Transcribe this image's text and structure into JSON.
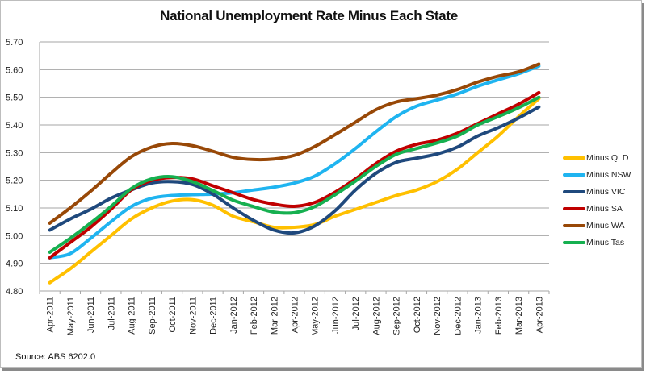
{
  "chart_data": {
    "type": "line",
    "title": "National Unemployment Rate Minus Each State",
    "xlabel": "",
    "ylabel": "",
    "ylim": [
      4.8,
      5.7
    ],
    "yticks": [
      "4.80",
      "4.90",
      "5.00",
      "5.10",
      "5.20",
      "5.30",
      "5.40",
      "5.50",
      "5.60",
      "5.70"
    ],
    "grid": true,
    "legend_position": "right",
    "categories": [
      "Apr-2011",
      "May-2011",
      "Jun-2011",
      "Jul-2011",
      "Aug-2011",
      "Sep-2011",
      "Oct-2011",
      "Nov-2011",
      "Dec-2011",
      "Jan-2012",
      "Feb-2012",
      "Mar-2012",
      "Apr-2012",
      "May-2012",
      "Jun-2012",
      "Jul-2012",
      "Aug-2012",
      "Sep-2012",
      "Oct-2012",
      "Nov-2012",
      "Dec-2012",
      "Jan-2013",
      "Feb-2013",
      "Mar-2013",
      "Apr-2013"
    ],
    "series": [
      {
        "name": "Minus QLD",
        "color": "#FFC000",
        "values": [
          4.83,
          4.88,
          4.94,
          5.0,
          5.06,
          5.1,
          5.125,
          5.13,
          5.11,
          5.07,
          5.05,
          5.03,
          5.03,
          5.04,
          5.07,
          5.095,
          5.12,
          5.145,
          5.165,
          5.195,
          5.24,
          5.3,
          5.36,
          5.43,
          5.495
        ]
      },
      {
        "name": "Minus NSW",
        "color": "#1FB4F0",
        "values": [
          4.92,
          4.935,
          4.99,
          5.05,
          5.105,
          5.135,
          5.145,
          5.148,
          5.15,
          5.155,
          5.165,
          5.175,
          5.19,
          5.215,
          5.26,
          5.315,
          5.375,
          5.43,
          5.468,
          5.49,
          5.512,
          5.54,
          5.563,
          5.585,
          5.613
        ]
      },
      {
        "name": "Minus VIC",
        "color": "#1F497D",
        "values": [
          5.02,
          5.06,
          5.095,
          5.135,
          5.165,
          5.19,
          5.195,
          5.185,
          5.15,
          5.1,
          5.055,
          5.02,
          5.01,
          5.035,
          5.09,
          5.165,
          5.225,
          5.265,
          5.28,
          5.295,
          5.32,
          5.36,
          5.39,
          5.425,
          5.465
        ]
      },
      {
        "name": "Minus SA",
        "color": "#C00000",
        "values": [
          4.92,
          4.975,
          5.03,
          5.095,
          5.165,
          5.2,
          5.21,
          5.205,
          5.18,
          5.155,
          5.13,
          5.114,
          5.106,
          5.12,
          5.157,
          5.205,
          5.26,
          5.305,
          5.33,
          5.345,
          5.37,
          5.405,
          5.44,
          5.475,
          5.517
        ]
      },
      {
        "name": "Minus WA",
        "color": "#984807",
        "values": [
          5.045,
          5.1,
          5.16,
          5.225,
          5.285,
          5.32,
          5.333,
          5.325,
          5.305,
          5.283,
          5.275,
          5.277,
          5.29,
          5.322,
          5.365,
          5.41,
          5.455,
          5.483,
          5.495,
          5.508,
          5.528,
          5.555,
          5.576,
          5.592,
          5.62
        ]
      },
      {
        "name": "Minus Tas",
        "color": "#16B050",
        "values": [
          4.94,
          4.99,
          5.045,
          5.105,
          5.17,
          5.205,
          5.213,
          5.195,
          5.163,
          5.128,
          5.105,
          5.085,
          5.083,
          5.105,
          5.148,
          5.197,
          5.25,
          5.294,
          5.315,
          5.335,
          5.36,
          5.4,
          5.43,
          5.462,
          5.5
        ]
      }
    ],
    "source": "Source: ABS 6202.0"
  }
}
